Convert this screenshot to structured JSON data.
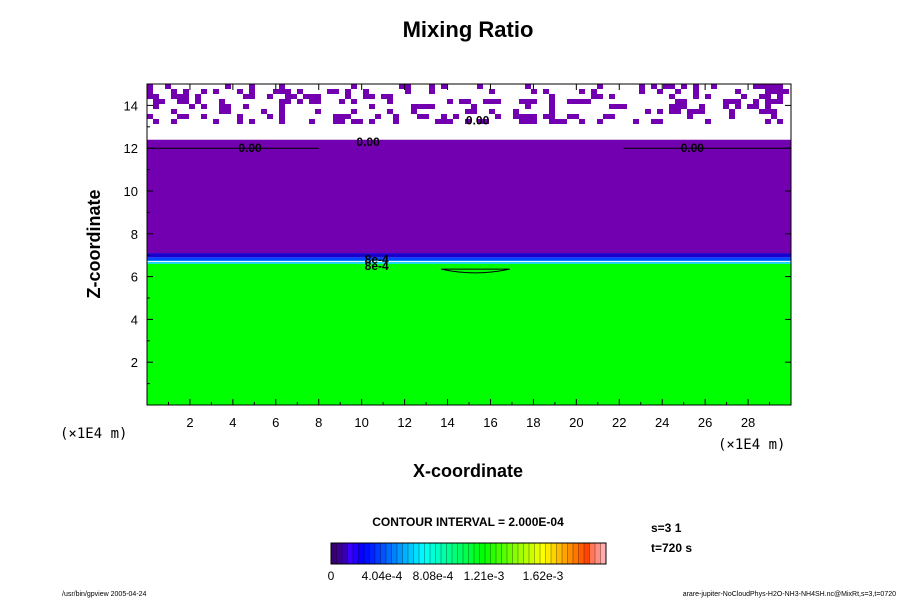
{
  "chart_data": {
    "type": "heatmap",
    "title": "Mixing Ratio",
    "xlabel": "X-coordinate",
    "ylabel": "Z-coordinate",
    "x_unit": "(×1E4 m)",
    "z_unit": "(×1E4 m)",
    "xlim": [
      0,
      30
    ],
    "ylim": [
      0,
      15
    ],
    "x_ticks": [
      "2",
      "4",
      "6",
      "8",
      "10",
      "12",
      "14",
      "16",
      "18",
      "20",
      "22",
      "24",
      "26",
      "28"
    ],
    "y_ticks": [
      "2",
      "4",
      "6",
      "8",
      "10",
      "12",
      "14"
    ],
    "bands": [
      {
        "z_from": 0,
        "z_to": 6.6,
        "color": "#00ff00"
      },
      {
        "z_from": 6.6,
        "z_to": 6.75,
        "color": "#00ccff"
      },
      {
        "z_from": 6.75,
        "z_to": 6.9,
        "color": "#0044ff"
      },
      {
        "z_from": 6.9,
        "z_to": 7.1,
        "color": "#1a00cc"
      },
      {
        "z_from": 7.1,
        "z_to": 12.4,
        "color": "#7300b0"
      }
    ],
    "contour_labels": [
      {
        "x": 4.8,
        "z": 12.0,
        "text": "0.00"
      },
      {
        "x": 10.3,
        "z": 12.3,
        "text": "0.00"
      },
      {
        "x": 15.4,
        "z": 13.3,
        "text": "0.00"
      },
      {
        "x": 25.4,
        "z": 12.0,
        "text": "0.00"
      },
      {
        "x": 10.7,
        "z": 6.8,
        "text": "8e-4"
      },
      {
        "x": 10.7,
        "z": 6.5,
        "text": "8e-4"
      }
    ],
    "contour_interval_label": "CONTOUR INTERVAL = 2.000E-04",
    "colorbar": {
      "labels": [
        "0",
        "4.04e-4",
        "8.08e-4",
        "1.21e-3",
        "1.62e-3"
      ],
      "range": [
        0,
        0.002
      ]
    }
  },
  "info": {
    "step": "s=3 1",
    "time": "t=720 s",
    "footer_left": "/usr/bin/gpview 2005-04-24",
    "footer_right": "arare-jupiter-NoCloudPhys-H2O-NH3-NH4SH.nc@MixRt,s=3,t=0720"
  },
  "colors": {
    "purple": "#7300b0",
    "green": "#00ff00",
    "background": "#ffffff"
  }
}
